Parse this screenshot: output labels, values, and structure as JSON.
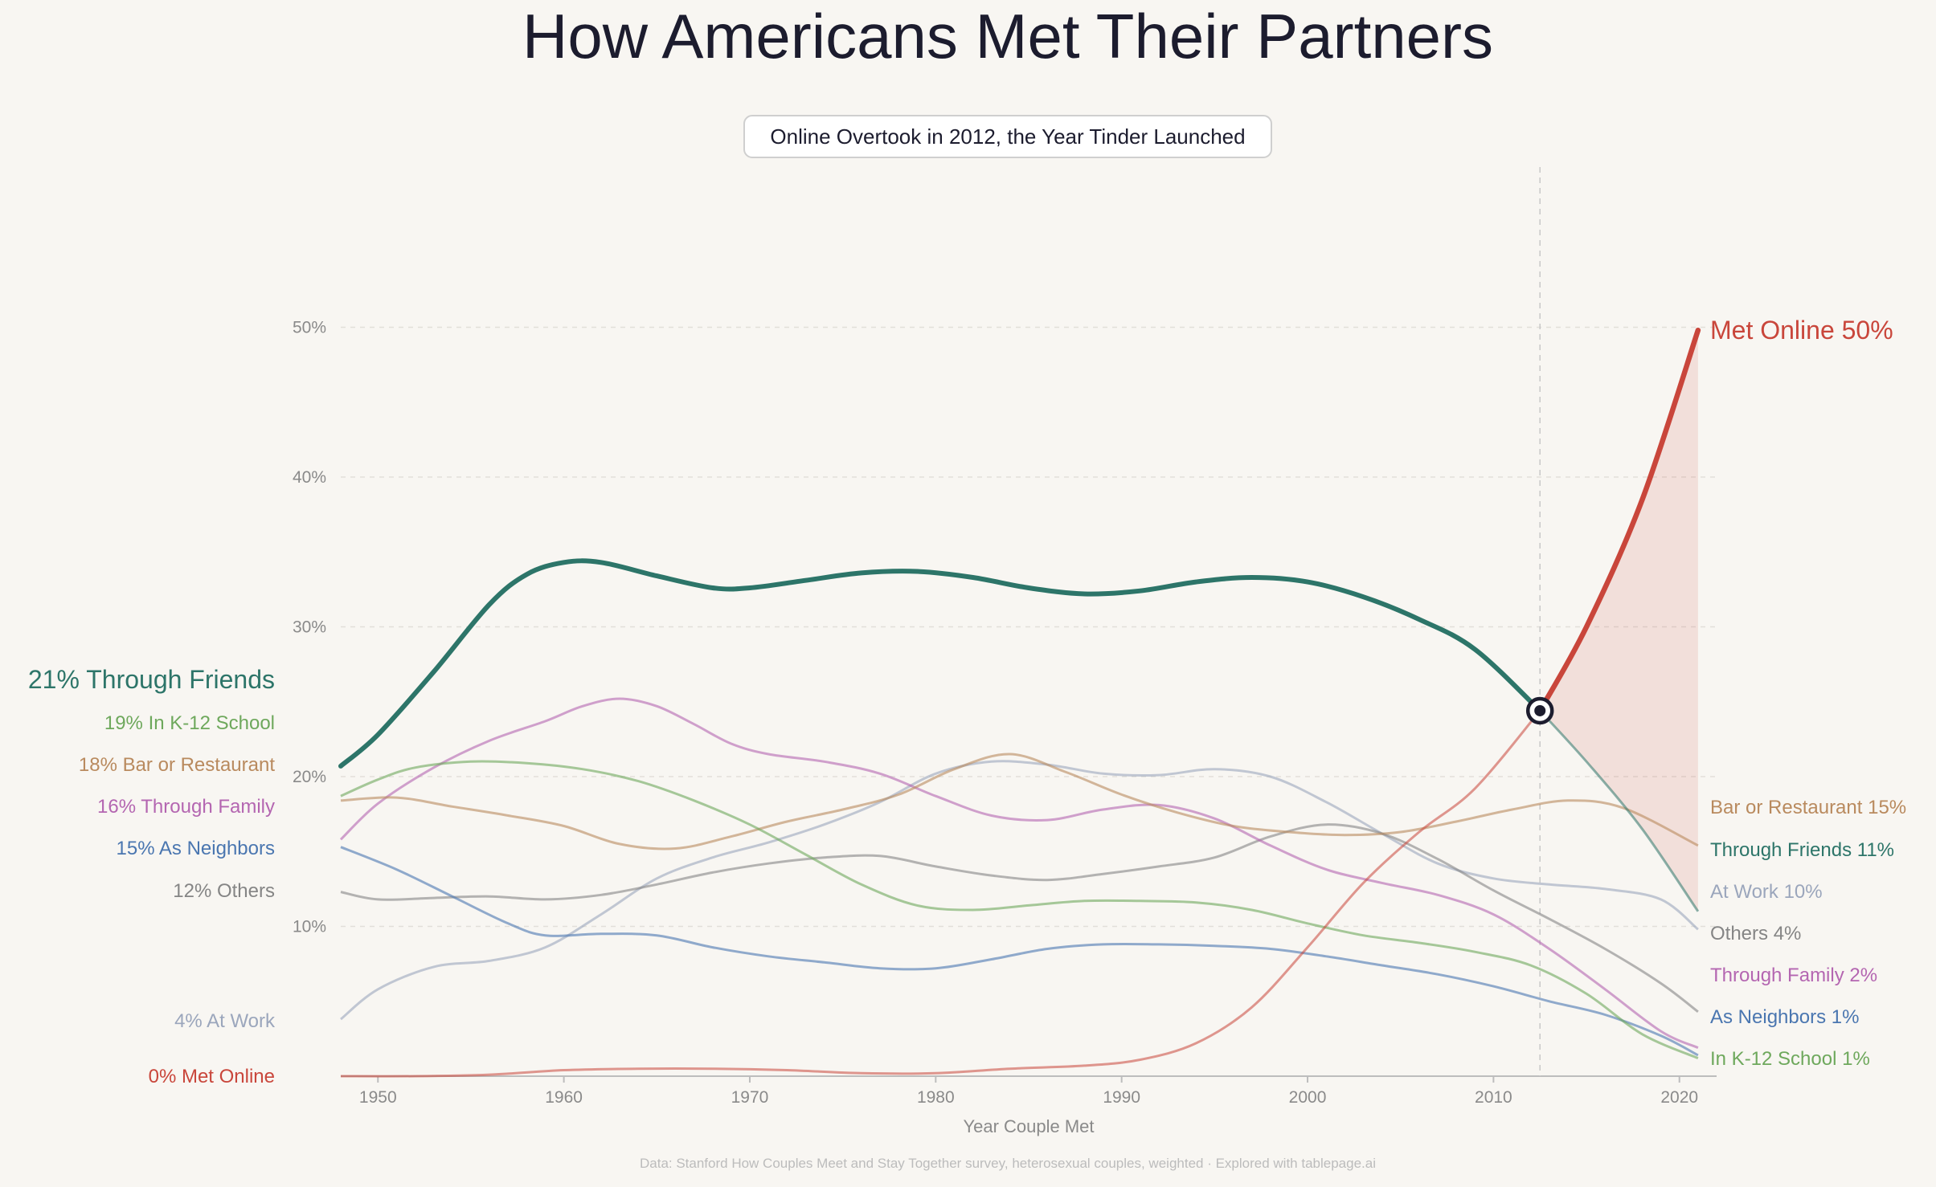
{
  "chart_data": {
    "type": "line",
    "title": "How Americans Met Their Partners",
    "subtitle": "Online Overtook in 2012, the Year Tinder Launched",
    "xlabel": "Year Couple Met",
    "ylabel": "",
    "xlim": [
      1948,
      2022
    ],
    "ylim": [
      0,
      60
    ],
    "yticks": [
      10,
      20,
      30,
      40,
      50
    ],
    "yticklabels": [
      "10%",
      "20%",
      "30%",
      "40%",
      "50%"
    ],
    "xticks": [
      1950,
      1960,
      1970,
      1980,
      1990,
      2000,
      2010,
      2020
    ],
    "xticklabels": [
      "1950",
      "1960",
      "1970",
      "1980",
      "1990",
      "2000",
      "2010",
      "2020"
    ],
    "grid": "horizontal dashed",
    "crossover": {
      "x": 2012.5,
      "y": 24.4
    },
    "footer": "Data: Stanford How Couples Meet and Stay Together survey, heterosexual couples, weighted  ·  Explored with tablepage.ai",
    "series": [
      {
        "name": "Through Friends",
        "color": "#2d7569",
        "start_label": "21%  Through Friends",
        "end_label": "Through Friends  11%",
        "points": [
          [
            1948,
            20.7
          ],
          [
            1950,
            22.8
          ],
          [
            1953,
            27.0
          ],
          [
            1956,
            31.5
          ],
          [
            1958,
            33.5
          ],
          [
            1960,
            34.3
          ],
          [
            1962,
            34.3
          ],
          [
            1965,
            33.4
          ],
          [
            1968,
            32.6
          ],
          [
            1970,
            32.6
          ],
          [
            1973,
            33.1
          ],
          [
            1976,
            33.6
          ],
          [
            1979,
            33.7
          ],
          [
            1982,
            33.3
          ],
          [
            1985,
            32.6
          ],
          [
            1988,
            32.2
          ],
          [
            1991,
            32.4
          ],
          [
            1994,
            33.0
          ],
          [
            1997,
            33.3
          ],
          [
            2000,
            33.0
          ],
          [
            2003,
            32.0
          ],
          [
            2006,
            30.5
          ],
          [
            2009,
            28.5
          ],
          [
            2012.5,
            24.4
          ],
          [
            2015,
            21.0
          ],
          [
            2018,
            16.5
          ],
          [
            2021,
            11.0
          ]
        ]
      },
      {
        "name": "In K-12 School",
        "color": "#6ea85c",
        "start_label": "19%  In K-12 School",
        "end_label": "In K-12 School  1%",
        "points": [
          [
            1948,
            18.7
          ],
          [
            1950,
            19.8
          ],
          [
            1952,
            20.6
          ],
          [
            1955,
            21.0
          ],
          [
            1958,
            20.9
          ],
          [
            1961,
            20.5
          ],
          [
            1964,
            19.7
          ],
          [
            1967,
            18.4
          ],
          [
            1970,
            16.8
          ],
          [
            1973,
            14.8
          ],
          [
            1976,
            12.8
          ],
          [
            1979,
            11.4
          ],
          [
            1982,
            11.1
          ],
          [
            1985,
            11.4
          ],
          [
            1988,
            11.7
          ],
          [
            1991,
            11.7
          ],
          [
            1994,
            11.6
          ],
          [
            1997,
            11.1
          ],
          [
            2000,
            10.2
          ],
          [
            2003,
            9.4
          ],
          [
            2006,
            8.9
          ],
          [
            2009,
            8.3
          ],
          [
            2012,
            7.4
          ],
          [
            2015,
            5.5
          ],
          [
            2018,
            2.8
          ],
          [
            2021,
            1.2
          ]
        ]
      },
      {
        "name": "Bar or Restaurant",
        "color": "#b98a5e",
        "start_label": "18%  Bar or Restaurant",
        "end_label": "Bar or Restaurant  15%",
        "points": [
          [
            1948,
            18.4
          ],
          [
            1951,
            18.6
          ],
          [
            1954,
            18.0
          ],
          [
            1957,
            17.4
          ],
          [
            1960,
            16.7
          ],
          [
            1963,
            15.5
          ],
          [
            1966,
            15.2
          ],
          [
            1969,
            16.0
          ],
          [
            1972,
            17.0
          ],
          [
            1975,
            17.8
          ],
          [
            1978,
            18.8
          ],
          [
            1981,
            20.5
          ],
          [
            1984,
            21.5
          ],
          [
            1987,
            20.3
          ],
          [
            1990,
            18.8
          ],
          [
            1993,
            17.6
          ],
          [
            1996,
            16.7
          ],
          [
            1999,
            16.3
          ],
          [
            2002,
            16.1
          ],
          [
            2005,
            16.3
          ],
          [
            2008,
            17.0
          ],
          [
            2011,
            17.8
          ],
          [
            2014,
            18.4
          ],
          [
            2017,
            17.9
          ],
          [
            2021,
            15.4
          ]
        ]
      },
      {
        "name": "Through Family",
        "color": "#b466b1",
        "start_label": "16%  Through Family",
        "end_label": "Through Family  2%",
        "points": [
          [
            1948,
            15.8
          ],
          [
            1950,
            18.2
          ],
          [
            1953,
            20.6
          ],
          [
            1956,
            22.4
          ],
          [
            1959,
            23.7
          ],
          [
            1961,
            24.7
          ],
          [
            1963,
            25.2
          ],
          [
            1965,
            24.7
          ],
          [
            1967,
            23.5
          ],
          [
            1969,
            22.2
          ],
          [
            1971,
            21.5
          ],
          [
            1974,
            21.0
          ],
          [
            1977,
            20.2
          ],
          [
            1980,
            18.7
          ],
          [
            1983,
            17.4
          ],
          [
            1986,
            17.1
          ],
          [
            1989,
            17.8
          ],
          [
            1992,
            18.1
          ],
          [
            1995,
            17.2
          ],
          [
            1998,
            15.4
          ],
          [
            2001,
            13.8
          ],
          [
            2004,
            12.9
          ],
          [
            2007,
            12.1
          ],
          [
            2010,
            10.8
          ],
          [
            2013,
            8.5
          ],
          [
            2016,
            5.8
          ],
          [
            2019,
            3.0
          ],
          [
            2021,
            1.9
          ]
        ]
      },
      {
        "name": "As Neighbors",
        "color": "#4a76b0",
        "start_label": "15%  As Neighbors",
        "end_label": "As Neighbors  1%",
        "points": [
          [
            1948,
            15.3
          ],
          [
            1951,
            13.8
          ],
          [
            1954,
            12.0
          ],
          [
            1957,
            10.2
          ],
          [
            1959,
            9.4
          ],
          [
            1962,
            9.5
          ],
          [
            1965,
            9.4
          ],
          [
            1968,
            8.6
          ],
          [
            1971,
            8.0
          ],
          [
            1974,
            7.6
          ],
          [
            1977,
            7.2
          ],
          [
            1980,
            7.2
          ],
          [
            1983,
            7.8
          ],
          [
            1986,
            8.5
          ],
          [
            1989,
            8.8
          ],
          [
            1992,
            8.8
          ],
          [
            1995,
            8.7
          ],
          [
            1998,
            8.5
          ],
          [
            2001,
            8.0
          ],
          [
            2004,
            7.4
          ],
          [
            2007,
            6.8
          ],
          [
            2010,
            6.0
          ],
          [
            2013,
            5.0
          ],
          [
            2016,
            4.1
          ],
          [
            2019,
            2.7
          ],
          [
            2021,
            1.4
          ]
        ]
      },
      {
        "name": "Others",
        "color": "#858585",
        "start_label": "12%  Others",
        "end_label": "Others  4%",
        "points": [
          [
            1948,
            12.3
          ],
          [
            1950,
            11.8
          ],
          [
            1953,
            11.9
          ],
          [
            1956,
            12.0
          ],
          [
            1959,
            11.8
          ],
          [
            1962,
            12.1
          ],
          [
            1965,
            12.8
          ],
          [
            1968,
            13.6
          ],
          [
            1971,
            14.2
          ],
          [
            1974,
            14.6
          ],
          [
            1977,
            14.7
          ],
          [
            1980,
            14.0
          ],
          [
            1983,
            13.4
          ],
          [
            1986,
            13.1
          ],
          [
            1989,
            13.5
          ],
          [
            1992,
            14.0
          ],
          [
            1995,
            14.6
          ],
          [
            1998,
            16.0
          ],
          [
            2001,
            16.8
          ],
          [
            2004,
            16.2
          ],
          [
            2007,
            14.5
          ],
          [
            2010,
            12.4
          ],
          [
            2013,
            10.5
          ],
          [
            2016,
            8.5
          ],
          [
            2019,
            6.2
          ],
          [
            2021,
            4.3
          ]
        ]
      },
      {
        "name": "At Work",
        "color": "#9ba6bc",
        "start_label": "4%  At Work",
        "end_label": "At Work  10%",
        "points": [
          [
            1948,
            3.8
          ],
          [
            1950,
            5.8
          ],
          [
            1953,
            7.3
          ],
          [
            1956,
            7.7
          ],
          [
            1959,
            8.6
          ],
          [
            1962,
            10.8
          ],
          [
            1965,
            13.2
          ],
          [
            1968,
            14.6
          ],
          [
            1971,
            15.6
          ],
          [
            1974,
            16.8
          ],
          [
            1977,
            18.3
          ],
          [
            1980,
            20.2
          ],
          [
            1983,
            21.0
          ],
          [
            1986,
            20.8
          ],
          [
            1989,
            20.2
          ],
          [
            1992,
            20.1
          ],
          [
            1995,
            20.5
          ],
          [
            1998,
            20.0
          ],
          [
            2001,
            18.3
          ],
          [
            2004,
            16.2
          ],
          [
            2007,
            14.2
          ],
          [
            2010,
            13.2
          ],
          [
            2013,
            12.8
          ],
          [
            2016,
            12.5
          ],
          [
            2019,
            11.8
          ],
          [
            2021,
            9.8
          ]
        ]
      },
      {
        "name": "Met Online",
        "color": "#c9463b",
        "start_label": "0%  Met Online",
        "end_label": "Met Online  50%",
        "points": [
          [
            1948,
            0.0
          ],
          [
            1952,
            0.0
          ],
          [
            1956,
            0.1
          ],
          [
            1960,
            0.4
          ],
          [
            1964,
            0.5
          ],
          [
            1968,
            0.5
          ],
          [
            1972,
            0.4
          ],
          [
            1976,
            0.2
          ],
          [
            1980,
            0.2
          ],
          [
            1984,
            0.5
          ],
          [
            1988,
            0.7
          ],
          [
            1991,
            1.1
          ],
          [
            1994,
            2.2
          ],
          [
            1997,
            4.6
          ],
          [
            2000,
            8.6
          ],
          [
            2003,
            12.9
          ],
          [
            2006,
            16.3
          ],
          [
            2009,
            19.2
          ],
          [
            2012.5,
            24.4
          ],
          [
            2015,
            30.0
          ],
          [
            2018,
            38.5
          ],
          [
            2021,
            49.8
          ]
        ]
      }
    ]
  }
}
